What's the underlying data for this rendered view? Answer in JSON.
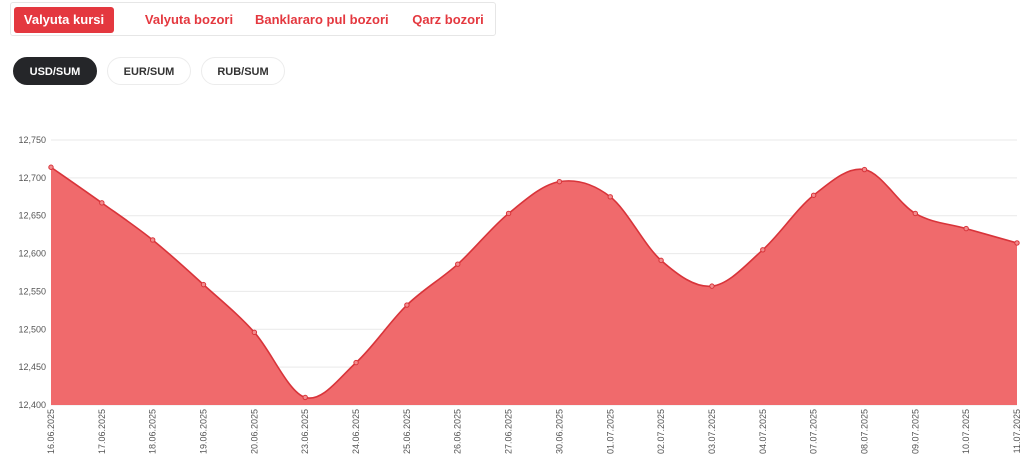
{
  "tabs": [
    {
      "label": "Valyuta kursi",
      "active": true
    },
    {
      "label": "Valyuta bozori",
      "active": false
    },
    {
      "label": "Banklararo pul bozori",
      "active": false
    },
    {
      "label": "Qarz bozori",
      "active": false
    }
  ],
  "pairs": [
    {
      "label": "USD/SUM",
      "active": true
    },
    {
      "label": "EUR/SUM",
      "active": false
    },
    {
      "label": "RUB/SUM",
      "active": false
    }
  ],
  "colors": {
    "accent": "#e4383f",
    "area_fill": "#f06a6c",
    "line": "#d8343a",
    "dark_pill": "#252629"
  },
  "chart_data": {
    "type": "area",
    "x": [
      "16.06.2025",
      "17.06.2025",
      "18.06.2025",
      "19.06.2025",
      "20.06.2025",
      "23.06.2025",
      "24.06.2025",
      "25.06.2025",
      "26.06.2025",
      "27.06.2025",
      "30.06.2025",
      "01.07.2025",
      "02.07.2025",
      "03.07.2025",
      "04.07.2025",
      "07.07.2025",
      "08.07.2025",
      "09.07.2025",
      "10.07.2025",
      "11.07.2025"
    ],
    "series": [
      {
        "values": [
          12714,
          12667,
          12618,
          12559,
          12496,
          12410,
          12456,
          12532,
          12586,
          12653,
          12695,
          12675,
          12591,
          12557,
          12605,
          12677,
          12711,
          12653,
          12633,
          12614
        ]
      }
    ],
    "yticks": [
      12400,
      12450,
      12500,
      12550,
      12600,
      12650,
      12700,
      12750
    ],
    "ytick_labels": [
      "12,400",
      "12,450",
      "12,500",
      "12,550",
      "12,600",
      "12,650",
      "12,700",
      "12,750"
    ],
    "ylim": [
      12400,
      12750
    ],
    "grid": true,
    "xlabel": "",
    "ylabel": "",
    "title": ""
  }
}
